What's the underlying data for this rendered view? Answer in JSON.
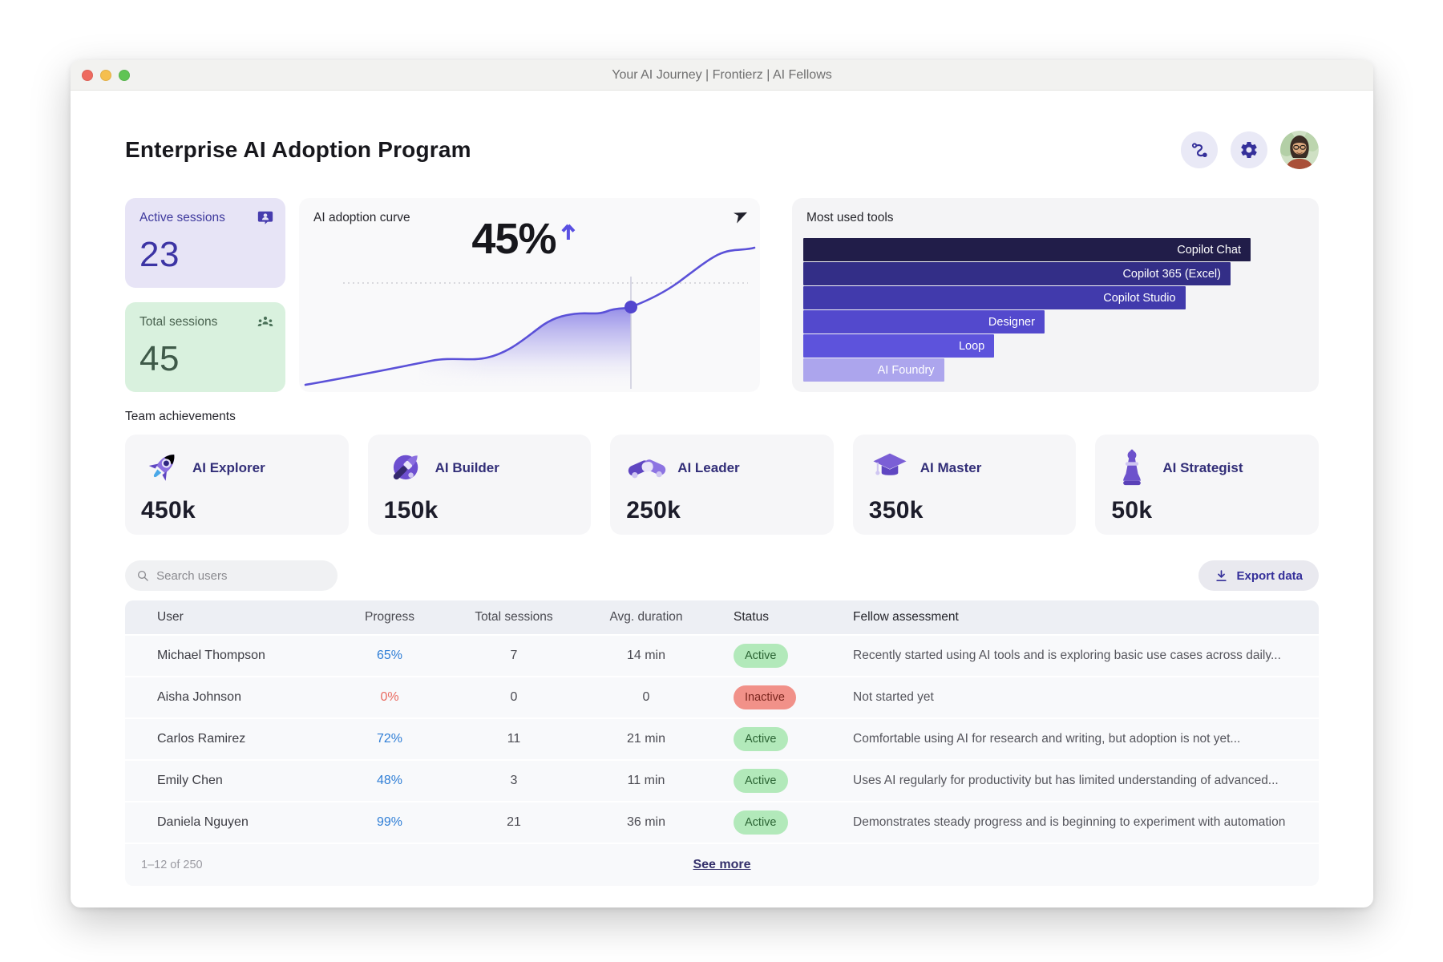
{
  "window": {
    "title": "Your AI Journey | Frontierz | AI Fellows"
  },
  "header": {
    "title": "Enterprise AI Adoption Program",
    "actions": [
      "route-icon",
      "settings-icon",
      "user-avatar"
    ]
  },
  "stats": [
    {
      "label": "Active sessions",
      "value": "23",
      "icon": "chat-user-icon",
      "bg": "#e7e4f6",
      "fg": "#3c34a4"
    },
    {
      "label": "Total sessions",
      "value": "45",
      "icon": "people-group-icon",
      "bg": "#d9f1de",
      "fg": "#3f5a49"
    }
  ],
  "adoption": {
    "title": "AI adoption curve",
    "value": "45%",
    "trend": "up",
    "icon": "send-icon",
    "accent": "#5b51d8"
  },
  "tools": {
    "title": "Most used tools",
    "bars": [
      {
        "label": "Copilot Chat",
        "width_pct": 89,
        "color": "#211d49"
      },
      {
        "label": "Copilot 365 (Excel)",
        "width_pct": 85,
        "color": "#332e87"
      },
      {
        "label": "Copilot Studio",
        "width_pct": 76,
        "color": "#413aac"
      },
      {
        "label": "Designer",
        "width_pct": 48,
        "color": "#5349cd"
      },
      {
        "label": "Loop",
        "width_pct": 38,
        "color": "#5d53dc"
      },
      {
        "label": "AI Foundry",
        "width_pct": 28,
        "color": "#aca5ed"
      }
    ]
  },
  "achievements": {
    "section_label": "Team achievements",
    "items": [
      {
        "label": "AI Explorer",
        "value": "450k",
        "icon": "rocket-icon"
      },
      {
        "label": "AI Builder",
        "value": "150k",
        "icon": "paintbrush-icon"
      },
      {
        "label": "AI Leader",
        "value": "250k",
        "icon": "handshake-icon"
      },
      {
        "label": "AI Master",
        "value": "350k",
        "icon": "graduation-cap-icon"
      },
      {
        "label": "AI Strategist",
        "value": "50k",
        "icon": "chess-piece-icon"
      }
    ]
  },
  "toolbar": {
    "search_placeholder": "Search users",
    "export_label": "Export data",
    "search_icon": "search-icon",
    "export_icon": "download-icon"
  },
  "colors": {
    "status": {
      "Active": {
        "bg": "#b2e9ba",
        "fg": "#2b6434"
      },
      "Inactive": {
        "bg": "#f19189",
        "fg": "#79251d"
      }
    }
  },
  "table": {
    "columns": [
      "User",
      "Progress",
      "Total sessions",
      "Avg. duration",
      "Status",
      "Fellow assessment"
    ],
    "rows": [
      {
        "name": "Michael Thompson",
        "progress": "65%",
        "progress_color": "#2f7ed6",
        "sessions": "7",
        "duration": "14 min",
        "status": "Active",
        "assessment": "Recently started using AI tools and is exploring basic use cases across daily..."
      },
      {
        "name": "Aisha Johnson",
        "progress": "0%",
        "progress_color": "#e96a60",
        "sessions": "0",
        "duration": "0",
        "status": "Inactive",
        "assessment": "Not started yet"
      },
      {
        "name": "Carlos Ramirez",
        "progress": "72%",
        "progress_color": "#2f7ed6",
        "sessions": "11",
        "duration": "21 min",
        "status": "Active",
        "assessment": "Comfortable using AI for research and writing, but adoption is not yet..."
      },
      {
        "name": "Emily Chen",
        "progress": "48%",
        "progress_color": "#2f7ed6",
        "sessions": "3",
        "duration": "11 min",
        "status": "Active",
        "assessment": "Uses AI regularly for productivity but has limited understanding of advanced..."
      },
      {
        "name": "Daniela Nguyen",
        "progress": "99%",
        "progress_color": "#2f7ed6",
        "sessions": "21",
        "duration": "36 min",
        "status": "Active",
        "assessment": "Demonstrates steady progress and is beginning to experiment with automation"
      }
    ],
    "footer": {
      "range": "1–12 of 250",
      "see_more": "See more"
    }
  },
  "chart_data": [
    {
      "type": "line",
      "title": "AI adoption curve",
      "x": [
        "t1",
        "t2",
        "t3",
        "t4",
        "t5",
        "t6",
        "t7",
        "t8",
        "t9",
        "t10",
        "t11",
        "t12"
      ],
      "values": [
        4,
        7,
        10,
        13,
        14,
        17,
        24,
        30,
        31,
        33,
        36,
        45
      ],
      "current_value_pct": 45,
      "trend": "up",
      "ylim": [
        0,
        50
      ],
      "grid": "single dotted guide line at current value",
      "legend": "none",
      "accent_color": "#5b51d8"
    },
    {
      "type": "bar",
      "title": "Most used tools",
      "orientation": "horizontal",
      "categories": [
        "Copilot Chat",
        "Copilot 365 (Excel)",
        "Copilot Studio",
        "Designer",
        "Loop",
        "AI Foundry"
      ],
      "values_relative_width_pct": [
        89,
        85,
        76,
        48,
        38,
        28
      ],
      "bar_colors": [
        "#211d49",
        "#332e87",
        "#413aac",
        "#5349cd",
        "#5d53dc",
        "#aca5ed"
      ],
      "labels_position": "inside-right",
      "axis": "none"
    }
  ]
}
